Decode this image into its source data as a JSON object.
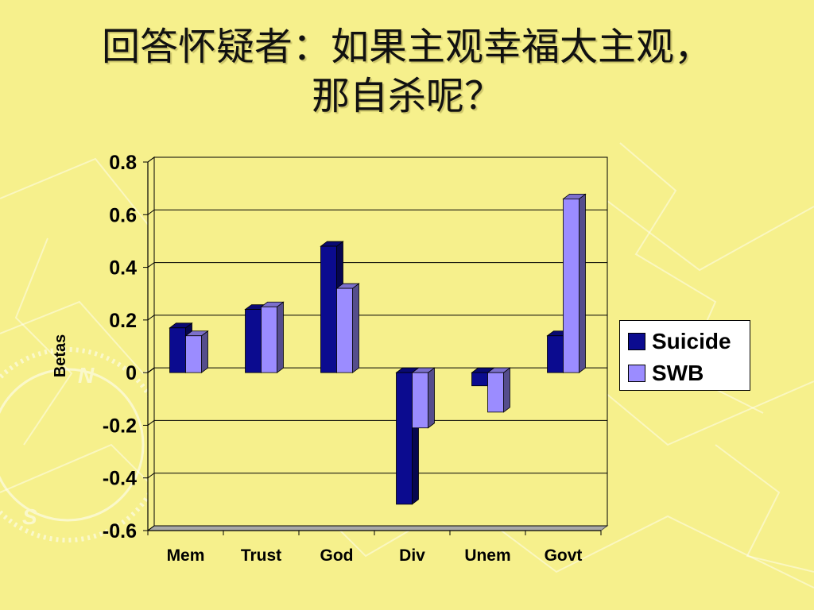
{
  "slide": {
    "title_line1": "回答怀疑者：如果主观幸福太主观，",
    "title_line2": "那自杀呢？"
  },
  "colors": {
    "background": "#f6f08c",
    "suicide": "#0b0b8f",
    "swb": "#9b8cff"
  },
  "chart_data": {
    "type": "bar",
    "categories": [
      "Mem",
      "Trust",
      "God",
      "Div",
      "Unem",
      "Govt"
    ],
    "series": [
      {
        "name": "Suicide",
        "values": [
          0.17,
          0.24,
          0.48,
          -0.5,
          -0.05,
          0.14
        ]
      },
      {
        "name": "SWB",
        "values": [
          0.14,
          0.25,
          0.32,
          -0.21,
          -0.15,
          0.66
        ]
      }
    ],
    "ylabel": "Betas",
    "xlabel": "",
    "ylim": [
      -0.6,
      0.8
    ],
    "yticks": [
      "0.8",
      "0.6",
      "0.4",
      "0.2",
      "0",
      "-0.2",
      "-0.4",
      "-0.6"
    ],
    "grid": true,
    "legend_position": "right",
    "three_d": true
  }
}
